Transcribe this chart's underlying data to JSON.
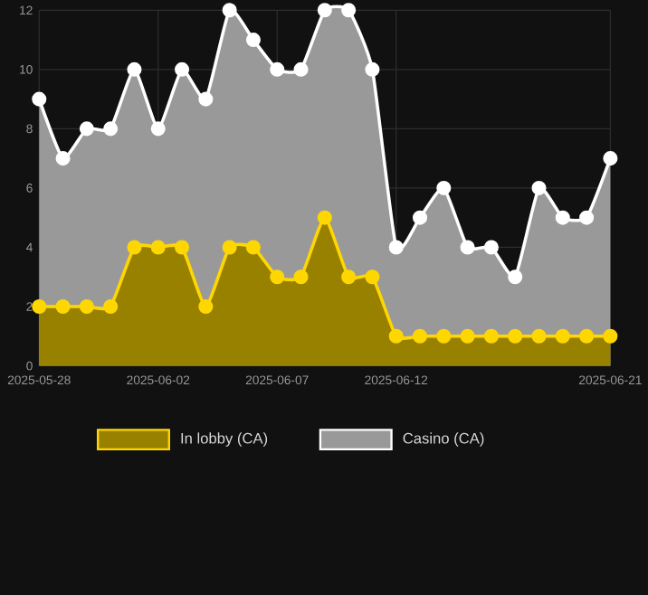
{
  "chart_data": {
    "type": "area",
    "x": [
      "2025-05-28",
      "2025-05-29",
      "2025-05-30",
      "2025-05-31",
      "2025-06-01",
      "2025-06-02",
      "2025-06-03",
      "2025-06-04",
      "2025-06-05",
      "2025-06-06",
      "2025-06-07",
      "2025-06-08",
      "2025-06-09",
      "2025-06-10",
      "2025-06-11",
      "2025-06-12",
      "2025-06-13",
      "2025-06-14",
      "2025-06-15",
      "2025-06-16",
      "2025-06-17",
      "2025-06-18",
      "2025-06-19",
      "2025-06-20",
      "2025-06-21"
    ],
    "series": [
      {
        "name": "In lobby (CA)",
        "color": "#ffd700",
        "values": [
          2,
          2,
          2,
          2,
          4,
          4,
          4,
          2,
          4,
          4,
          3,
          3,
          5,
          3,
          3,
          1,
          1,
          1,
          1,
          1,
          1,
          1,
          1,
          1,
          1
        ]
      },
      {
        "name": "Casino (CA)",
        "color": "#ffffff",
        "values": [
          9,
          7,
          8,
          8,
          10,
          8,
          10,
          9,
          12,
          11,
          10,
          10,
          12,
          12,
          10,
          4,
          5,
          6,
          4,
          4,
          3,
          6,
          5,
          5,
          7
        ]
      }
    ],
    "xlim": [
      "2025-05-28",
      "2025-06-21"
    ],
    "xticks": [
      "2025-05-28",
      "2025-06-02",
      "2025-06-07",
      "2025-06-12",
      "2025-06-21"
    ],
    "ylim": [
      0,
      12
    ],
    "yticks": [
      0,
      2,
      4,
      6,
      8,
      10,
      12
    ],
    "grid": true,
    "legend": "bottom",
    "marker": "circle"
  }
}
